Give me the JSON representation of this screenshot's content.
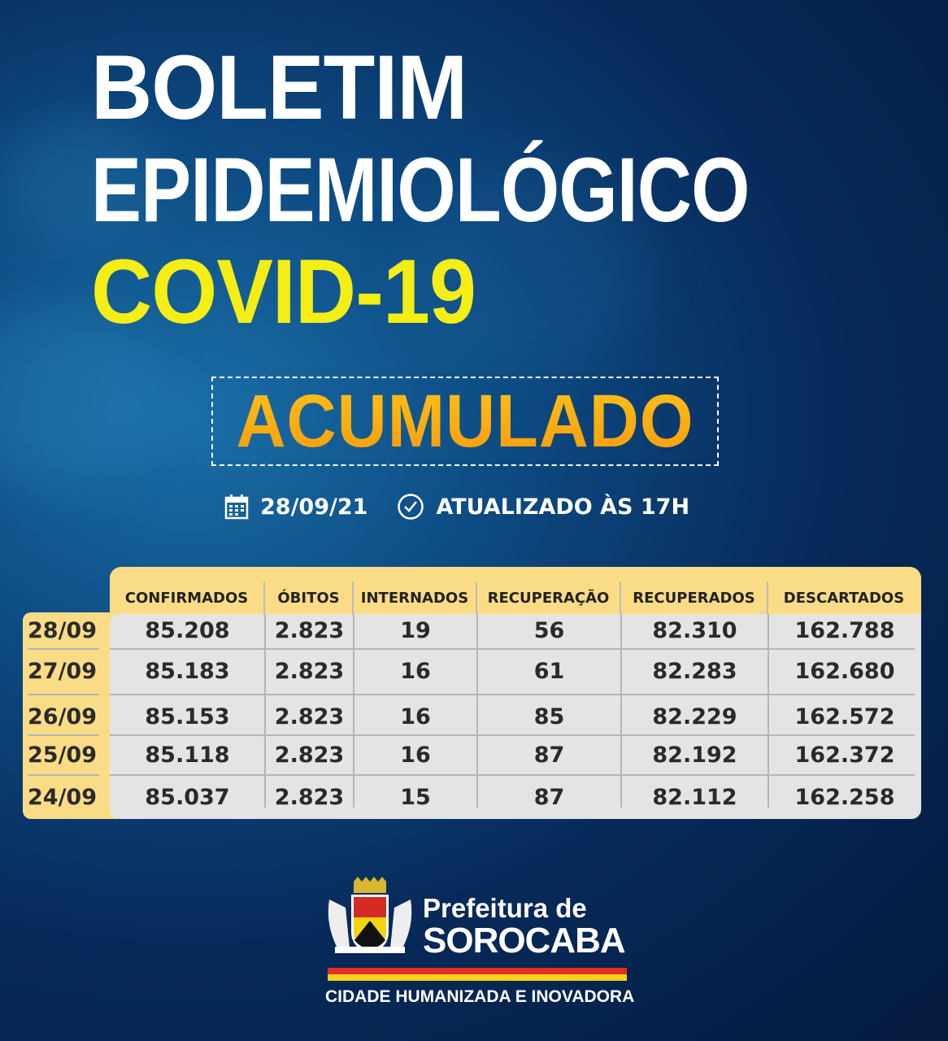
{
  "header": {
    "line1": "BOLETIM",
    "line2": "EPIDEMIOLÓGICO",
    "line3": "COVID-19",
    "badge": "ACUMULADO",
    "date": "28/09/21",
    "updated": "ATUALIZADO ÀS 17H",
    "date_icon": "calendar-icon",
    "time_icon": "clock-icon"
  },
  "table": {
    "columns": [
      "CONFIRMADOS",
      "ÓBITOS",
      "INTERNADOS",
      "RECUPERAÇÃO",
      "RECUPERADOS",
      "DESCARTADOS"
    ],
    "rows": [
      {
        "date": "28/09",
        "values": [
          "85.208",
          "2.823",
          "19",
          "56",
          "82.310",
          "162.788"
        ]
      },
      {
        "date": "27/09",
        "values": [
          "85.183",
          "2.823",
          "16",
          "61",
          "82.283",
          "162.680"
        ]
      },
      {
        "date": "26/09",
        "values": [
          "85.153",
          "2.823",
          "16",
          "85",
          "82.229",
          "162.572"
        ]
      },
      {
        "date": "25/09",
        "values": [
          "85.118",
          "2.823",
          "16",
          "87",
          "82.192",
          "162.372"
        ]
      },
      {
        "date": "24/09",
        "values": [
          "85.037",
          "2.823",
          "15",
          "87",
          "82.112",
          "162.258"
        ]
      }
    ]
  },
  "footer": {
    "logo_line1": "Prefeitura de",
    "logo_line2": "SOROCABA",
    "slogan": "CIDADE HUMANIZADA E INOVADORA"
  },
  "colors": {
    "title": "#ffffff",
    "covid": "#f4ee14",
    "badge": "#f7a712",
    "table_header": "#fbdc86",
    "table_body": "#e4e4e4",
    "background": "#072a5a"
  }
}
